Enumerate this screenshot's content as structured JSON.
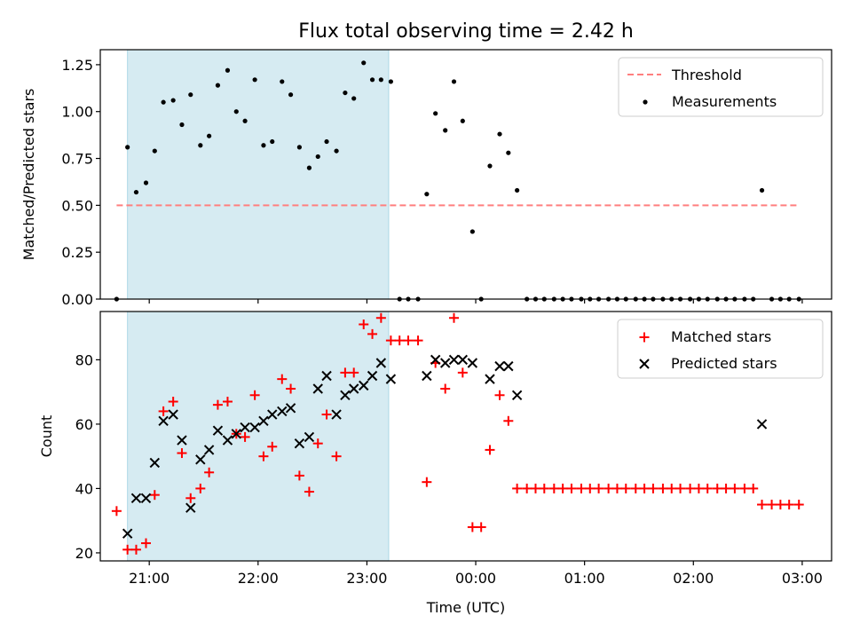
{
  "title": "Flux total observing time = 2.42 h",
  "colors": {
    "shade": "#add8e6",
    "threshold": "#ff7f7f",
    "matched": "#ff0000",
    "predicted": "#000000",
    "measurement": "#000000"
  },
  "chart_data": [
    {
      "type": "scatter",
      "ylabel": "Matched/Predicted stars",
      "xlabel": "",
      "ylim": [
        0,
        1.33
      ],
      "yticks": [
        "0.00",
        "0.25",
        "0.50",
        "0.75",
        "1.00",
        "1.25"
      ],
      "xlim": [
        20.55,
        27.27
      ],
      "shaded_interval": [
        20.8,
        23.2
      ],
      "threshold": {
        "name": "Threshold",
        "value": 0.5,
        "x_range": [
          20.7,
          26.95
        ]
      },
      "legend": {
        "position": "top-right",
        "entries": [
          "Threshold",
          "Measurements"
        ]
      },
      "series": [
        {
          "name": "Measurements",
          "marker": "dot",
          "x": [
            20.7,
            20.8,
            20.88,
            20.97,
            21.05,
            21.13,
            21.22,
            21.3,
            21.38,
            21.47,
            21.55,
            21.63,
            21.72,
            21.8,
            21.88,
            21.97,
            22.05,
            22.13,
            22.22,
            22.3,
            22.38,
            22.47,
            22.55,
            22.63,
            22.72,
            22.8,
            22.88,
            22.97,
            23.05,
            23.13,
            23.22,
            23.3,
            23.38,
            23.47,
            23.55,
            23.63,
            23.72,
            23.8,
            23.88,
            23.97,
            24.05,
            24.13,
            24.22,
            24.3,
            24.38,
            24.47,
            24.55,
            24.63,
            24.72,
            24.8,
            24.88,
            24.97,
            25.05,
            25.13,
            25.22,
            25.3,
            25.38,
            25.47,
            25.55,
            25.63,
            25.72,
            25.8,
            25.88,
            25.97,
            26.05,
            26.13,
            26.22,
            26.3,
            26.38,
            26.47,
            26.55,
            26.63,
            26.72,
            26.8,
            26.88,
            26.97
          ],
          "y": [
            0.0,
            0.81,
            0.57,
            0.62,
            0.79,
            1.05,
            1.06,
            0.93,
            1.09,
            0.82,
            0.87,
            1.14,
            1.22,
            1.0,
            0.95,
            1.17,
            0.82,
            0.84,
            1.16,
            1.09,
            0.81,
            0.7,
            0.76,
            0.84,
            0.79,
            1.1,
            1.07,
            1.26,
            1.17,
            1.17,
            1.16,
            0.0,
            0.0,
            0.0,
            0.56,
            0.99,
            0.9,
            1.16,
            0.95,
            0.36,
            0.0,
            0.71,
            0.88,
            0.78,
            0.58,
            0.0,
            0.0,
            0.0,
            0.0,
            0.0,
            0.0,
            0.0,
            0.0,
            0.0,
            0.0,
            0.0,
            0.0,
            0.0,
            0.0,
            0.0,
            0.0,
            0.0,
            0.0,
            0.0,
            0.0,
            0.0,
            0.0,
            0.0,
            0.0,
            0.0,
            0.0,
            0.58,
            0.0,
            0.0,
            0.0,
            0.0
          ]
        }
      ]
    },
    {
      "type": "scatter",
      "ylabel": "Count",
      "xlabel": "Time (UTC)",
      "ylim": [
        17.5,
        95
      ],
      "yticks": [
        "20",
        "40",
        "60",
        "80"
      ],
      "xlim": [
        20.55,
        27.27
      ],
      "xticks": [
        "21:00",
        "22:00",
        "23:00",
        "00:00",
        "01:00",
        "02:00",
        "03:00"
      ],
      "shaded_interval": [
        20.8,
        23.2
      ],
      "legend": {
        "position": "top-right",
        "entries": [
          "Matched stars",
          "Predicted stars"
        ]
      },
      "series": [
        {
          "name": "Matched stars",
          "marker": "plus",
          "x": [
            20.7,
            20.8,
            20.88,
            20.97,
            21.05,
            21.13,
            21.22,
            21.3,
            21.38,
            21.47,
            21.55,
            21.63,
            21.72,
            21.8,
            21.88,
            21.97,
            22.05,
            22.13,
            22.22,
            22.3,
            22.38,
            22.47,
            22.55,
            22.63,
            22.72,
            22.8,
            22.88,
            22.97,
            23.05,
            23.13,
            23.22,
            23.3,
            23.38,
            23.47,
            23.55,
            23.63,
            23.72,
            23.8,
            23.88,
            23.97,
            24.05,
            24.13,
            24.22,
            24.3,
            24.38,
            24.47,
            24.55,
            24.63,
            24.72,
            24.8,
            24.88,
            24.97,
            25.05,
            25.13,
            25.22,
            25.3,
            25.38,
            25.47,
            25.55,
            25.63,
            25.72,
            25.8,
            25.88,
            25.97,
            26.05,
            26.13,
            26.22,
            26.3,
            26.38,
            26.47,
            26.55,
            26.63,
            26.72,
            26.8,
            26.88,
            26.97
          ],
          "y": [
            33,
            21,
            21,
            23,
            38,
            64,
            67,
            51,
            37,
            40,
            45,
            66,
            67,
            57,
            56,
            69,
            50,
            53,
            74,
            71,
            44,
            39,
            54,
            63,
            50,
            76,
            76,
            91,
            88,
            93,
            86,
            86,
            86,
            86,
            42,
            79,
            71,
            93,
            76,
            28,
            28,
            52,
            69,
            61,
            40,
            40,
            40,
            40,
            40,
            40,
            40,
            40,
            40,
            40,
            40,
            40,
            40,
            40,
            40,
            40,
            40,
            40,
            40,
            40,
            40,
            40,
            40,
            40,
            40,
            40,
            40,
            35,
            35,
            35,
            35,
            35
          ]
        },
        {
          "name": "Predicted stars",
          "marker": "x",
          "x": [
            20.8,
            20.88,
            20.97,
            21.05,
            21.13,
            21.22,
            21.3,
            21.38,
            21.47,
            21.55,
            21.63,
            21.72,
            21.8,
            21.88,
            21.97,
            22.05,
            22.13,
            22.22,
            22.3,
            22.38,
            22.47,
            22.55,
            22.63,
            22.72,
            22.8,
            22.88,
            22.97,
            23.05,
            23.13,
            23.22,
            23.55,
            23.63,
            23.72,
            23.8,
            23.88,
            23.97,
            24.13,
            24.22,
            24.3,
            24.38,
            26.63
          ],
          "y": [
            26,
            37,
            37,
            48,
            61,
            63,
            55,
            34,
            49,
            52,
            58,
            55,
            57,
            59,
            59,
            61,
            63,
            64,
            65,
            54,
            56,
            71,
            75,
            63,
            69,
            71,
            72,
            75,
            79,
            74,
            75,
            80,
            79,
            80,
            80,
            79,
            74,
            78,
            78,
            69,
            60
          ]
        }
      ]
    }
  ]
}
